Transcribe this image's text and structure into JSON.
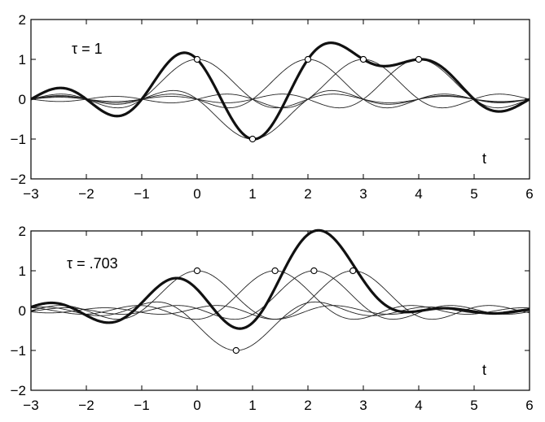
{
  "chart_data": [
    {
      "type": "line",
      "annotation": "τ = 1",
      "xlabel": "t",
      "xlim": [
        -3,
        6
      ],
      "ylim": [
        -2,
        2
      ],
      "xticks": [
        "−3",
        "−2",
        "−1",
        "0",
        "1",
        "2",
        "3",
        "4",
        "5",
        "6"
      ],
      "yticks": [
        "−2",
        "−1",
        "0",
        "1",
        "2"
      ],
      "grid": false,
      "tau": 1,
      "samples": [
        {
          "t": 0,
          "value": 1
        },
        {
          "t": 1,
          "value": -1
        },
        {
          "t": 2,
          "value": 1
        },
        {
          "t": 3,
          "value": 1
        },
        {
          "t": 4,
          "value": 1
        }
      ]
    },
    {
      "type": "line",
      "annotation": "τ = .703",
      "xlabel": "t",
      "xlim": [
        -3,
        6
      ],
      "ylim": [
        -2,
        2
      ],
      "xticks": [
        "−3",
        "−2",
        "−1",
        "0",
        "1",
        "2",
        "3",
        "4",
        "5",
        "6"
      ],
      "yticks": [
        "−2",
        "−1",
        "0",
        "1",
        "2"
      ],
      "grid": false,
      "tau": 0.703,
      "samples": [
        {
          "t": 0,
          "value": 1
        },
        {
          "t": 0.703,
          "value": -1
        },
        {
          "t": 1.406,
          "value": 1
        },
        {
          "t": 2.109,
          "value": 1
        },
        {
          "t": 2.812,
          "value": 1
        }
      ]
    }
  ]
}
